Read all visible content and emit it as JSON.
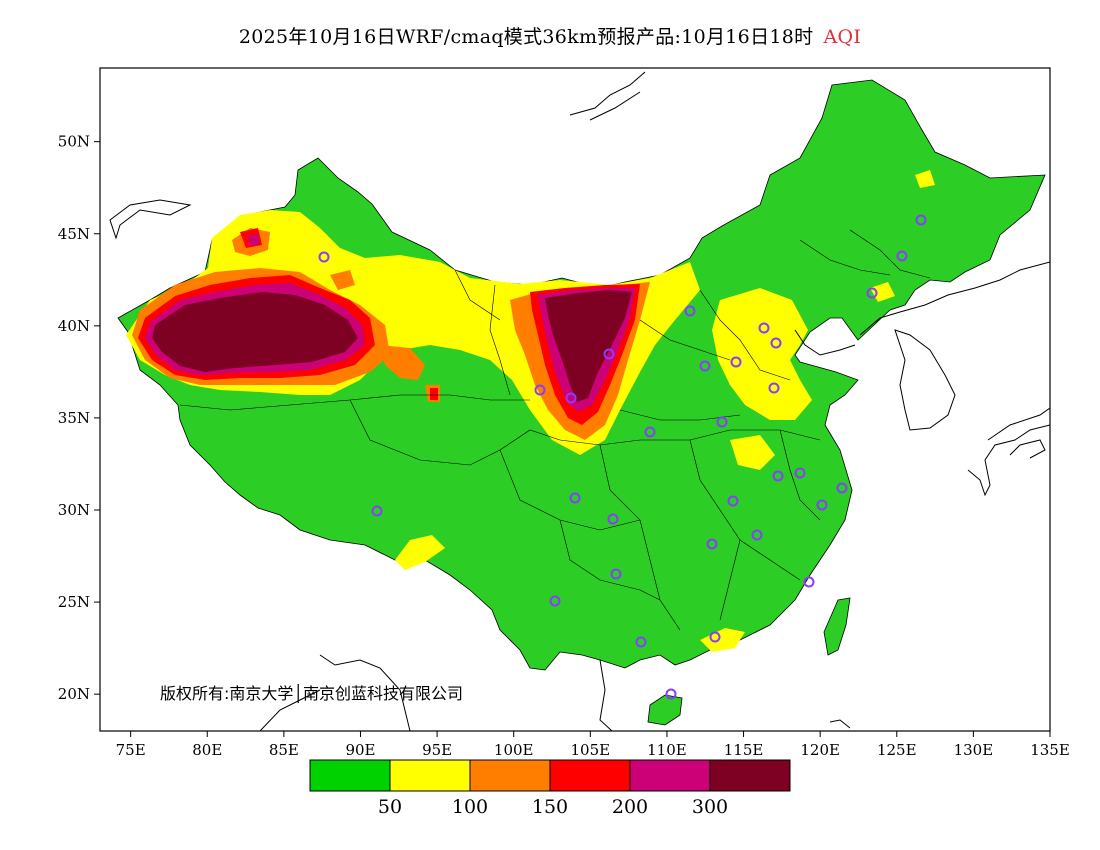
{
  "title": {
    "text": "2025年10月16日WRF/cmaq模式36km预报产品:10月16日18时",
    "variable": "AQI"
  },
  "copyright": "版权所有:南京大学│南京创蓝科技有限公司",
  "axes": {
    "x_ticks": [
      "75E",
      "80E",
      "85E",
      "90E",
      "95E",
      "100E",
      "105E",
      "110E",
      "115E",
      "120E",
      "125E",
      "130E",
      "135E"
    ],
    "y_ticks": [
      "50N",
      "45N",
      "40N",
      "35N",
      "30N",
      "25N",
      "20N"
    ],
    "lon_range": [
      73,
      135
    ],
    "lat_range": [
      18,
      54
    ]
  },
  "legend": {
    "colors": [
      "#00d200",
      "#ffff00",
      "#ff7e00",
      "#ff0000",
      "#cc0077",
      "#7e0023"
    ],
    "labels": [
      "50",
      "100",
      "150",
      "200",
      "300"
    ]
  },
  "colors": {
    "good": "#2ccd24",
    "moderate": "#ffff00",
    "usg": "#ff7e00",
    "unhealthy": "#ff0000",
    "very_unhealthy": "#cc0077",
    "hazardous": "#7e0023",
    "station_ring": "#8a3cff"
  }
}
